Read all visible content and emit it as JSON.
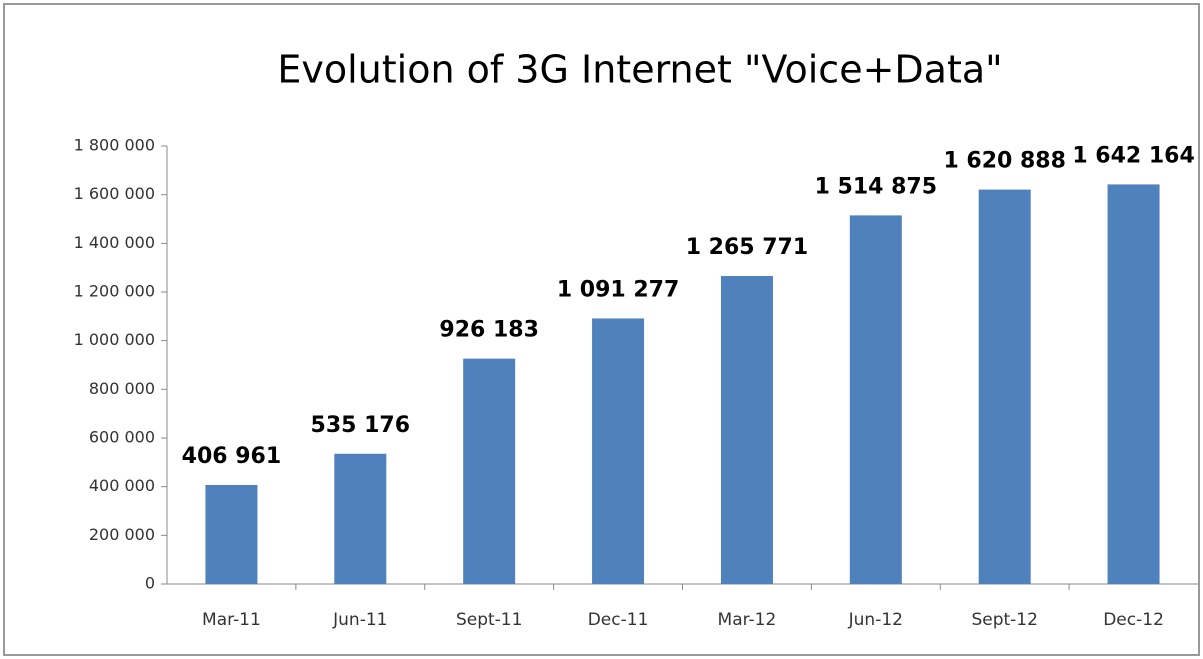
{
  "chart_data": {
    "type": "bar",
    "title": "Evolution of 3G Internet \"Voice+Data\"",
    "categories": [
      "Mar-11",
      "Jun-11",
      "Sept-11",
      "Dec-11",
      "Mar-12",
      "Jun-12",
      "Sept-12",
      "Dec-12"
    ],
    "values": [
      406961,
      535176,
      926183,
      1091277,
      1265771,
      1514875,
      1620888,
      1642164
    ],
    "value_labels": [
      "406 961",
      "535 176",
      "926 183",
      "1 091 277",
      "1 265 771",
      "1 514 875",
      "1 620 888",
      "1 642 164"
    ],
    "color": "#4f81bd",
    "ylim": [
      0,
      1800000
    ],
    "yticks": [
      0,
      {
        "value": 200000,
        "label": "200 000"
      },
      {
        "value": 400000,
        "label": "400 000"
      },
      {
        "value": 600000,
        "label": "600 000"
      },
      {
        "value": 800000,
        "label": "800 000"
      },
      {
        "value": 1000000,
        "label": "1 000 000"
      },
      {
        "value": 1200000,
        "label": "1 200 000"
      },
      {
        "value": 1400000,
        "label": "1 400 000"
      },
      {
        "value": 1600000,
        "label": "1 600 000"
      },
      {
        "value": 1800000,
        "label": "1 800 000"
      }
    ],
    "grid": false
  }
}
